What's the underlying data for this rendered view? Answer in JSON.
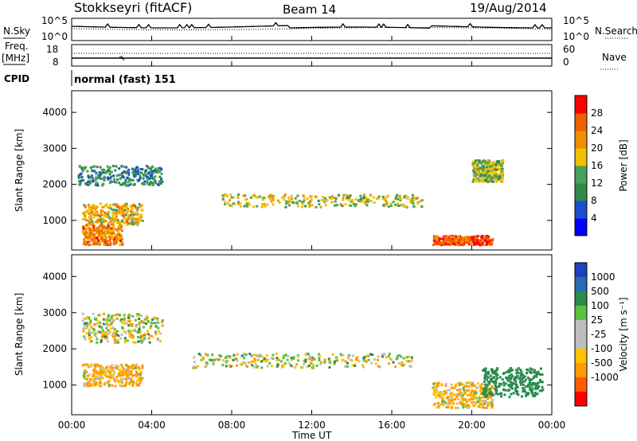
{
  "header": {
    "station": "Stokkseyri (fitACF)",
    "beam": "Beam 14",
    "date": "19/Aug/2014"
  },
  "summary_panels": {
    "nsky_label": "N.Sky",
    "nsearch_label": "N.Search",
    "noise_ticks_left": [
      "10^5",
      "10^0"
    ],
    "noise_ticks_right": [
      "10^5",
      "10^0"
    ],
    "freq_label_1": "Freq.",
    "freq_label_2": "[MHz]",
    "freq_ticks": [
      "18",
      "8"
    ],
    "nave_label": "Nave",
    "nave_ticks": [
      "60",
      "0"
    ],
    "cpid_label": "CPID",
    "cpid_text": "normal (fast) 151"
  },
  "colors": {
    "power_scale": [
      "#0000ff",
      "#1c4fd0",
      "#2f8a4a",
      "#4aa05a",
      "#f0c000",
      "#f09000",
      "#f06000",
      "#ff0000"
    ],
    "velocity_scale": [
      "#ff0000",
      "#ff5a00",
      "#ff9a00",
      "#ffc000",
      "#bebebe",
      "#bebebe",
      "#5cc040",
      "#2a8a50",
      "#2a6ab0",
      "#2040c0"
    ]
  },
  "chart_data": [
    {
      "type": "heatmap",
      "name": "power",
      "title": "",
      "xlabel": "Time UT",
      "ylabel": "Slant Range [km]",
      "x_range": [
        "00:00",
        "24:00"
      ],
      "x_tick_labels": [
        "00:00",
        "04:00",
        "08:00",
        "12:00",
        "16:00",
        "20:00",
        "00:00"
      ],
      "ylim": [
        180,
        4600
      ],
      "y_tick_labels": [
        "1000",
        "2000",
        "3000",
        "4000"
      ],
      "colorbar_label": "Power [dB]",
      "colorbar_ticks": [
        "4",
        "8",
        "12",
        "16",
        "20",
        "24",
        "28"
      ],
      "colorbar_range": [
        0,
        30
      ],
      "bands": [
        {
          "range_km": [
            1400,
            1750
          ],
          "hours": [
            7.5,
            17.5
          ],
          "value": 16
        },
        {
          "range_km": [
            2000,
            2550
          ],
          "hours": [
            0.3,
            4.5
          ],
          "value": 10
        },
        {
          "range_km": [
            900,
            1500
          ],
          "hours": [
            0.5,
            3.5
          ],
          "value": 18
        },
        {
          "range_km": [
            350,
            900
          ],
          "hours": [
            0.5,
            2.5
          ],
          "value": 22
        },
        {
          "range_km": [
            350,
            600
          ],
          "hours": [
            18.0,
            21.0
          ],
          "value": 25
        },
        {
          "range_km": [
            2100,
            2700
          ],
          "hours": [
            20.0,
            21.5
          ],
          "value": 14
        }
      ]
    },
    {
      "type": "heatmap",
      "name": "velocity",
      "title": "",
      "xlabel": "Time UT",
      "ylabel": "Slant Range [km]",
      "x_range": [
        "00:00",
        "24:00"
      ],
      "x_tick_labels": [
        "00:00",
        "04:00",
        "08:00",
        "12:00",
        "16:00",
        "20:00",
        "00:00"
      ],
      "ylim": [
        180,
        4600
      ],
      "y_tick_labels": [
        "1000",
        "2000",
        "3000",
        "4000"
      ],
      "colorbar_label": "Velocity [m s⁻¹]",
      "colorbar_ticks": [
        "1000",
        "500",
        "100",
        "25",
        "-25",
        "-100",
        "-500",
        "-1000"
      ],
      "bands": [
        {
          "range_km": [
            1500,
            1900
          ],
          "hours": [
            6.0,
            17.0
          ],
          "value": 0
        },
        {
          "range_km": [
            2200,
            3000
          ],
          "hours": [
            0.5,
            4.5
          ],
          "value": 0
        },
        {
          "range_km": [
            1000,
            1600
          ],
          "hours": [
            0.5,
            3.5
          ],
          "value": -100
        },
        {
          "range_km": [
            400,
            1100
          ],
          "hours": [
            18.0,
            21.0
          ],
          "value": -100
        },
        {
          "range_km": [
            700,
            1500
          ],
          "hours": [
            20.5,
            23.5
          ],
          "value": 300
        }
      ]
    }
  ]
}
